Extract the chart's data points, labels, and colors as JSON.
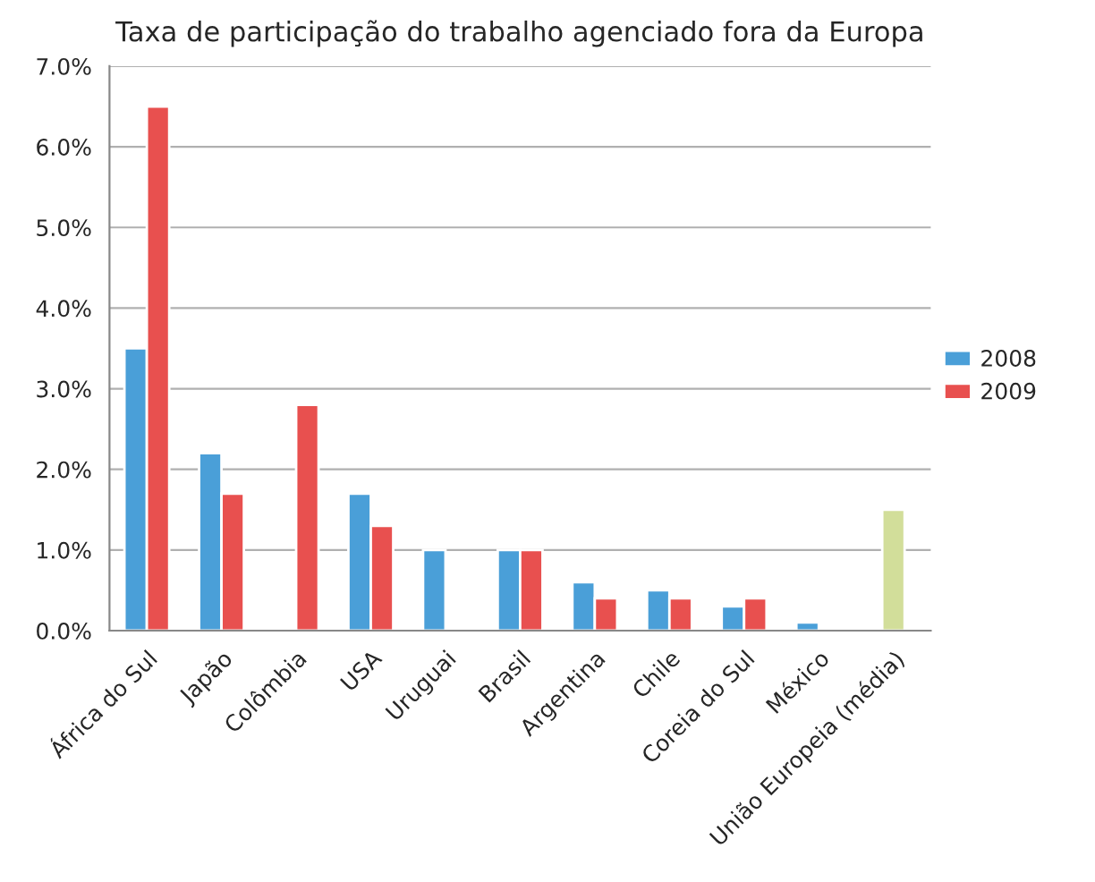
{
  "chart_data": {
    "type": "bar",
    "title": "Taxa de participação do trabalho agenciado fora da Europa",
    "categories": [
      "África do Sul",
      "Japão",
      "Colômbia",
      "USA",
      "Uruguai",
      "Brasil",
      "Argentina",
      "Chile",
      "Coreia do Sul",
      "México",
      "União Europeia (média)"
    ],
    "series": [
      {
        "name": "2008",
        "color": "#4a9fd8",
        "values": [
          3.5,
          2.2,
          null,
          1.7,
          1.0,
          1.0,
          0.6,
          0.5,
          0.3,
          0.1,
          null
        ]
      },
      {
        "name": "2009",
        "color": "#e8504f",
        "values": [
          6.5,
          1.7,
          2.8,
          1.3,
          null,
          1.0,
          0.4,
          0.4,
          0.4,
          null,
          null
        ]
      },
      {
        "color": "#d2de9a",
        "values": [
          null,
          null,
          null,
          null,
          null,
          null,
          null,
          null,
          null,
          null,
          1.5
        ]
      }
    ],
    "ylim": [
      0,
      7
    ],
    "yticks": [
      {
        "value": 0,
        "label": "0.0%"
      },
      {
        "value": 1,
        "label": "1.0%"
      },
      {
        "value": 2,
        "label": "2.0%"
      },
      {
        "value": 3,
        "label": "3.0%"
      },
      {
        "value": 4,
        "label": "4.0%"
      },
      {
        "value": 5,
        "label": "5.0%"
      },
      {
        "value": 6,
        "label": "6.0%"
      },
      {
        "value": 7,
        "label": "7.0%"
      }
    ],
    "grid": "y",
    "legend": "right"
  }
}
